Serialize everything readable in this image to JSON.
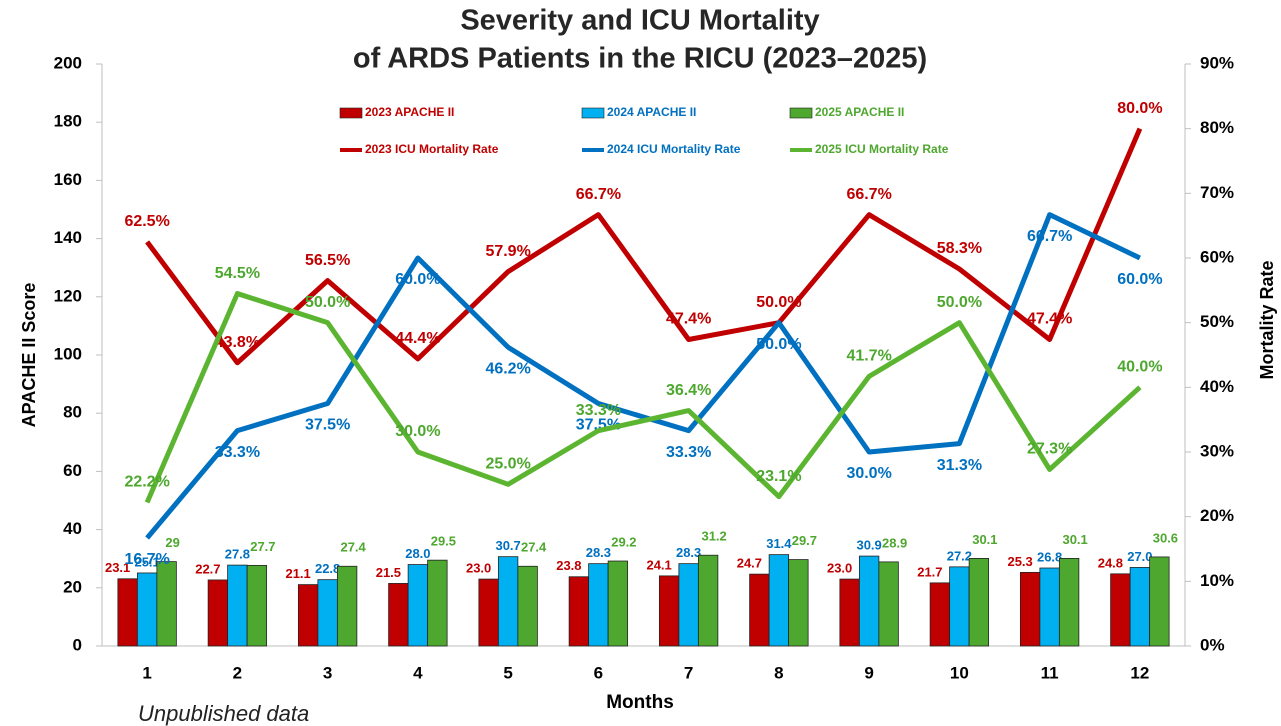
{
  "chart_data": {
    "type": "combo",
    "title": [
      "Severity and ICU Mortality",
      "of ARDS Patients in the RICU (2023–2025)"
    ],
    "x_label": "Months",
    "y_label": "APACHE II Score",
    "y2_label": "Mortality Rate",
    "annotation": "Unpublished data",
    "categories": [
      "1",
      "2",
      "3",
      "4",
      "5",
      "6",
      "7",
      "8",
      "9",
      "10",
      "11",
      "12"
    ],
    "ylim": [
      0,
      200
    ],
    "yticks": [
      0,
      20,
      40,
      60,
      80,
      100,
      120,
      140,
      160,
      180,
      200
    ],
    "y2lim": [
      0,
      90
    ],
    "y2ticks": [
      {
        "value": 0,
        "label": "0%"
      },
      {
        "value": 10,
        "label": "10%"
      },
      {
        "value": 20,
        "label": "20%"
      },
      {
        "value": 30,
        "label": "30%"
      },
      {
        "value": 40,
        "label": "40%"
      },
      {
        "value": 50,
        "label": "50%"
      },
      {
        "value": 60,
        "label": "60%"
      },
      {
        "value": 70,
        "label": "70%"
      },
      {
        "value": 80,
        "label": "80%"
      },
      {
        "value": 90,
        "label": "90%"
      }
    ],
    "legend": "top",
    "series": [
      {
        "name": "2023 APACHE II",
        "type": "bar",
        "color": "#c00000",
        "label_color": "#c00000",
        "values": [
          23.1,
          22.7,
          21.1,
          21.5,
          23.0,
          23.8,
          24.1,
          24.7,
          23.0,
          21.7,
          25.3,
          24.8
        ],
        "value_labels": [
          "23.1",
          "22.7",
          "21.1",
          "21.5",
          "23.0",
          "23.8",
          "24.1",
          "24.7",
          "23.0",
          "21.7",
          "25.3",
          "24.8"
        ]
      },
      {
        "name": "2024 APACHE II",
        "type": "bar",
        "color": "#00b0f0",
        "label_color": "#0070c0",
        "values": [
          25.1,
          27.8,
          22.8,
          28.0,
          30.7,
          28.3,
          28.3,
          31.4,
          30.9,
          27.2,
          26.8,
          27.0
        ],
        "value_labels": [
          "25.1",
          "27.8",
          "22.8",
          "28.0",
          "30.7",
          "28.3",
          "28.3",
          "31.4",
          "30.9",
          "27.2",
          "26.8",
          "27.0"
        ]
      },
      {
        "name": "2025 APACHE II",
        "type": "bar",
        "color": "#4ea72e",
        "label_color": "#4ea72e",
        "values": [
          29,
          27.7,
          27.4,
          29.5,
          27.4,
          29.2,
          31.2,
          29.7,
          28.9,
          30.1,
          30.1,
          30.6
        ],
        "value_labels": [
          "29",
          "27.7",
          "27.4",
          "29.5",
          "27.4",
          "29.2",
          "31.2",
          "29.7",
          "28.9",
          "30.1",
          "30.1",
          "30.6"
        ]
      },
      {
        "name": "2023 ICU Mortality Rate",
        "type": "line",
        "axis": "y2",
        "color": "#c00000",
        "label_color": "#c00000",
        "values": [
          62.5,
          43.8,
          56.5,
          44.4,
          57.9,
          66.7,
          47.4,
          50.0,
          66.7,
          58.3,
          47.4,
          80.0
        ],
        "value_labels": [
          "62.5%",
          "43.8%",
          "56.5%",
          "44.4%",
          "57.9%",
          "66.7%",
          "47.4%",
          "50.0%",
          "66.7%",
          "58.3%",
          "47.4%",
          "80.0%"
        ]
      },
      {
        "name": "2024 ICU Mortality Rate",
        "type": "line",
        "axis": "y2",
        "color": "#0070c0",
        "label_color": "#0070c0",
        "values": [
          16.7,
          33.3,
          37.5,
          60.0,
          46.2,
          37.5,
          33.3,
          50.0,
          30.0,
          31.3,
          66.7,
          60.0
        ],
        "value_labels": [
          "16.7%",
          "33.3%",
          "37.5%",
          "60.0%",
          "46.2%",
          "37.5%",
          "33.3%",
          "50.0%",
          "30.0%",
          "31.3%",
          "66.7%",
          "60.0%"
        ]
      },
      {
        "name": "2025 ICU Mortality Rate",
        "type": "line",
        "axis": "y2",
        "color": "#5cb531",
        "label_color": "#4ea72e",
        "values": [
          22.2,
          54.5,
          50.0,
          30.0,
          25.0,
          33.3,
          36.4,
          23.1,
          41.7,
          50.0,
          27.3,
          40.0
        ],
        "value_labels": [
          "22.2%",
          "54.5%",
          "50.0%",
          "30.0%",
          "25.0%",
          "33.3%",
          "36.4%",
          "23.1%",
          "41.7%",
          "50.0%",
          "27.3%",
          "40.0%"
        ]
      }
    ]
  }
}
